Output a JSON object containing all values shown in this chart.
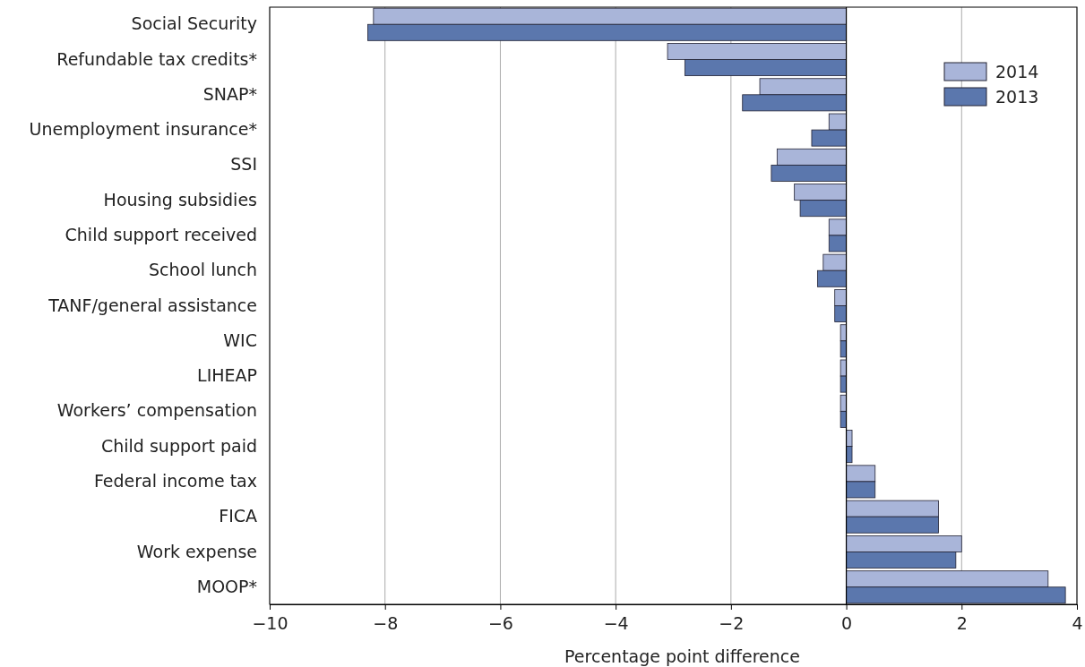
{
  "chart_data": {
    "type": "bar",
    "orientation": "horizontal",
    "xlabel": "Percentage point difference",
    "categories": [
      "Social Security",
      "Refundable tax credits*",
      "SNAP*",
      "Unemployment insurance*",
      "SSI",
      "Housing subsidies",
      "Child support received",
      "School lunch",
      "TANF/general assistance",
      "WIC",
      "LIHEAP",
      "Workers’ compensation",
      "Child support paid",
      "Federal income tax",
      "FICA",
      "Work expense",
      "MOOP*"
    ],
    "series": [
      {
        "name": "2014",
        "color": "#a9b5d9",
        "values": [
          -8.2,
          -3.1,
          -1.5,
          -0.3,
          -1.2,
          -0.9,
          -0.3,
          -0.4,
          -0.2,
          -0.1,
          -0.1,
          -0.1,
          0.1,
          0.5,
          1.6,
          2.0,
          3.5
        ]
      },
      {
        "name": "2013",
        "color": "#5b77ad",
        "values": [
          -8.3,
          -2.8,
          -1.8,
          -0.6,
          -1.3,
          -0.8,
          -0.3,
          -0.5,
          -0.2,
          -0.1,
          -0.1,
          -0.1,
          0.1,
          0.5,
          1.6,
          1.9,
          3.8
        ]
      }
    ],
    "xlim": [
      -10,
      4
    ],
    "xticks": [
      -10,
      -8,
      -6,
      -4,
      -2,
      0,
      2,
      4
    ],
    "grid": "x",
    "legend": "top right"
  }
}
